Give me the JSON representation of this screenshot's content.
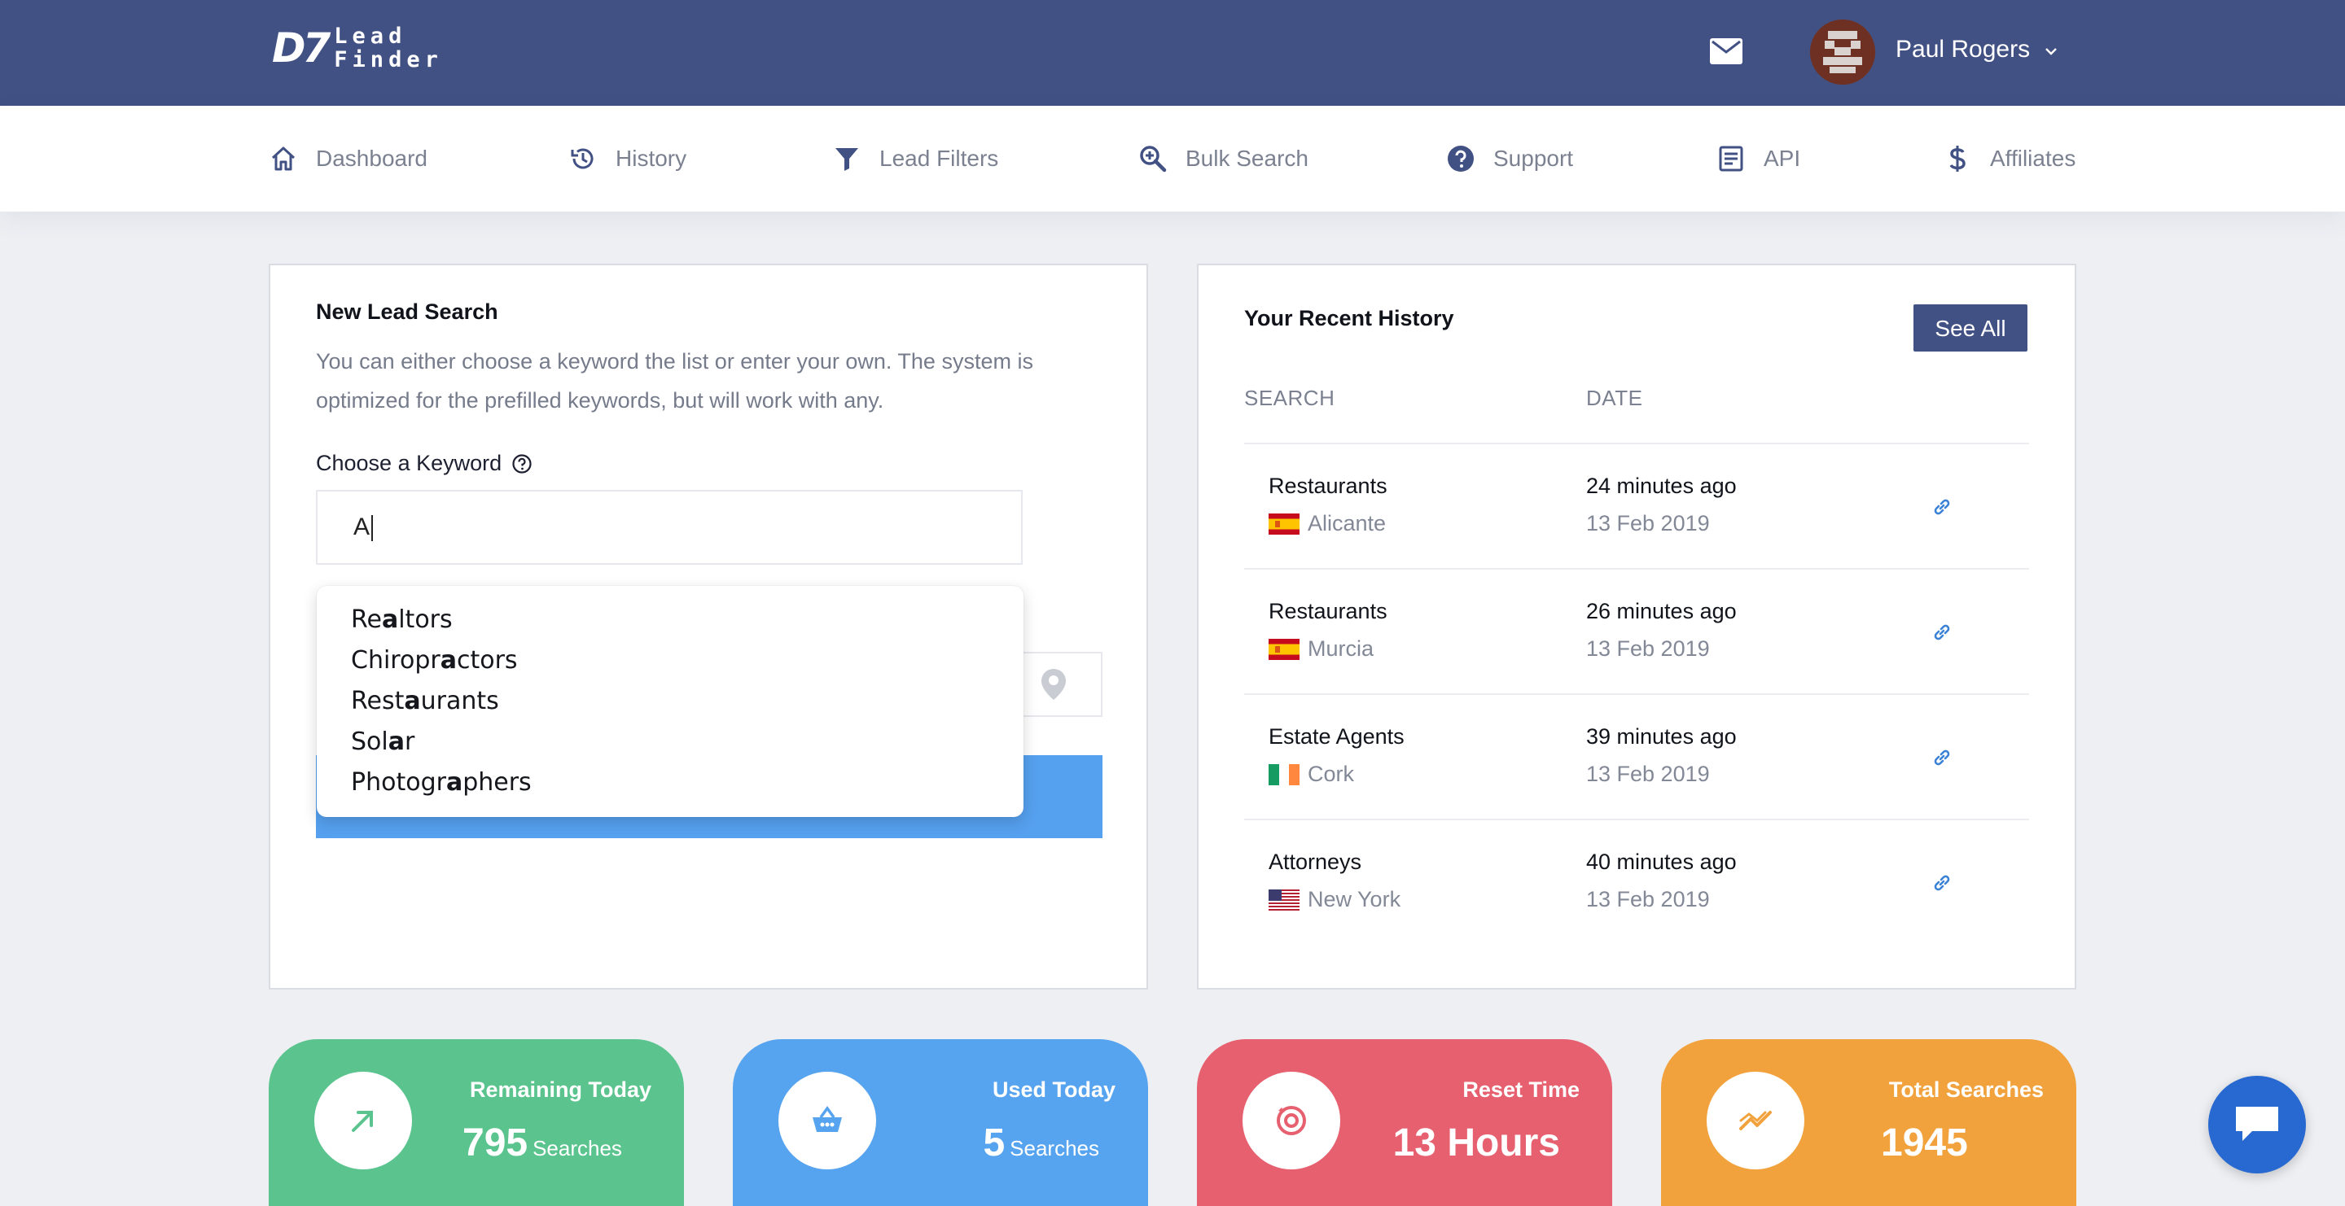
{
  "header": {
    "logo_mark": "D7",
    "logo_line1": "Lead",
    "logo_line2": "Finder",
    "user_name": "Paul Rogers"
  },
  "nav": [
    {
      "label": "Dashboard",
      "icon": "home-icon"
    },
    {
      "label": "History",
      "icon": "history-icon"
    },
    {
      "label": "Lead Filters",
      "icon": "filter-icon"
    },
    {
      "label": "Bulk Search",
      "icon": "search-plus-icon"
    },
    {
      "label": "Support",
      "icon": "help-circle-icon"
    },
    {
      "label": "API",
      "icon": "document-icon"
    },
    {
      "label": "Affiliates",
      "icon": "dollar-icon"
    }
  ],
  "search_card": {
    "title": "New Lead Search",
    "description": "You can either choose a keyword the list or enter your own. The system is optimized for the prefilled keywords, but will work with any.",
    "keyword_label": "Choose a Keyword",
    "keyword_value": "A",
    "suggestions": [
      {
        "pre": "Re",
        "hl": "a",
        "post": "ltors"
      },
      {
        "pre": "Chiropr",
        "hl": "a",
        "post": "ctors"
      },
      {
        "pre": "Rest",
        "hl": "a",
        "post": "urants"
      },
      {
        "pre": "Sol",
        "hl": "a",
        "post": "r"
      },
      {
        "pre": "Photogr",
        "hl": "a",
        "post": "phers"
      }
    ]
  },
  "history_card": {
    "title": "Your Recent History",
    "see_all": "See All",
    "col_search": "SEARCH",
    "col_date": "DATE",
    "rows": [
      {
        "search": "Restaurants",
        "location": "Alicante",
        "flag": "spain",
        "ago": "24 minutes ago",
        "date": "13 Feb 2019"
      },
      {
        "search": "Restaurants",
        "location": "Murcia",
        "flag": "spain",
        "ago": "26 minutes ago",
        "date": "13 Feb 2019"
      },
      {
        "search": "Estate Agents",
        "location": "Cork",
        "flag": "ireland",
        "ago": "39 minutes ago",
        "date": "13 Feb 2019"
      },
      {
        "search": "Attorneys",
        "location": "New York",
        "flag": "usa",
        "ago": "40 minutes ago",
        "date": "13 Feb 2019"
      }
    ]
  },
  "stats": [
    {
      "label": "Remaining Today",
      "value": "795",
      "unit": "Searches",
      "color": "#5bc48e",
      "icon": "trend-up-arrow-icon"
    },
    {
      "label": "Used Today",
      "value": "5",
      "unit": "Searches",
      "color": "#56a3ef",
      "icon": "basket-icon"
    },
    {
      "label": "Reset Time",
      "value": "13 Hours",
      "unit": "",
      "color": "#e6606f",
      "icon": "reset-icon"
    },
    {
      "label": "Total Searches",
      "value": "1945",
      "unit": "",
      "color": "#f2a23c",
      "icon": "trending-icon"
    }
  ],
  "colors": {
    "header_bg": "#425184",
    "accent_blue": "#55a0ef",
    "link_blue": "#3b82d6"
  }
}
